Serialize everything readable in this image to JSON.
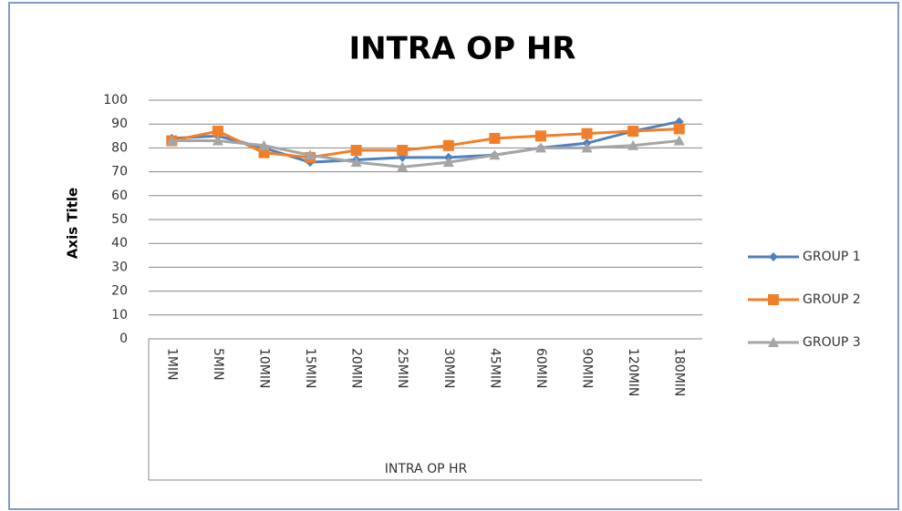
{
  "chart_data": {
    "type": "line",
    "title": "INTRA OP HR",
    "y_label": "Axis Title",
    "x_label": "INTRA OP HR",
    "categories": [
      "1MIN",
      "5MIN",
      "10MIN",
      "15MIN",
      "20MIN",
      "25MIN",
      "30MIN",
      "45MIN",
      "60MIN",
      "90MIN",
      "120MIN",
      "180MIN"
    ],
    "series": [
      {
        "name": "GROUP 1",
        "color": "#4f81bd",
        "marker": "diamond",
        "values": [
          84,
          85,
          80,
          74,
          75,
          76,
          76,
          77,
          80,
          82,
          87,
          91
        ]
      },
      {
        "name": "GROUP 2",
        "color": "#f07f2b",
        "marker": "square",
        "values": [
          83,
          87,
          78,
          76,
          79,
          79,
          81,
          84,
          85,
          86,
          87,
          88
        ]
      },
      {
        "name": "GROUP 3",
        "color": "#a5a5a5",
        "marker": "triangle",
        "values": [
          83,
          83,
          81,
          77,
          74,
          72,
          74,
          77,
          80,
          80,
          81,
          83
        ]
      }
    ],
    "ylim": [
      0,
      100
    ],
    "yticks": [
      0,
      10,
      20,
      30,
      40,
      50,
      60,
      70,
      80,
      90,
      100
    ],
    "grid": true,
    "legend": "right"
  }
}
